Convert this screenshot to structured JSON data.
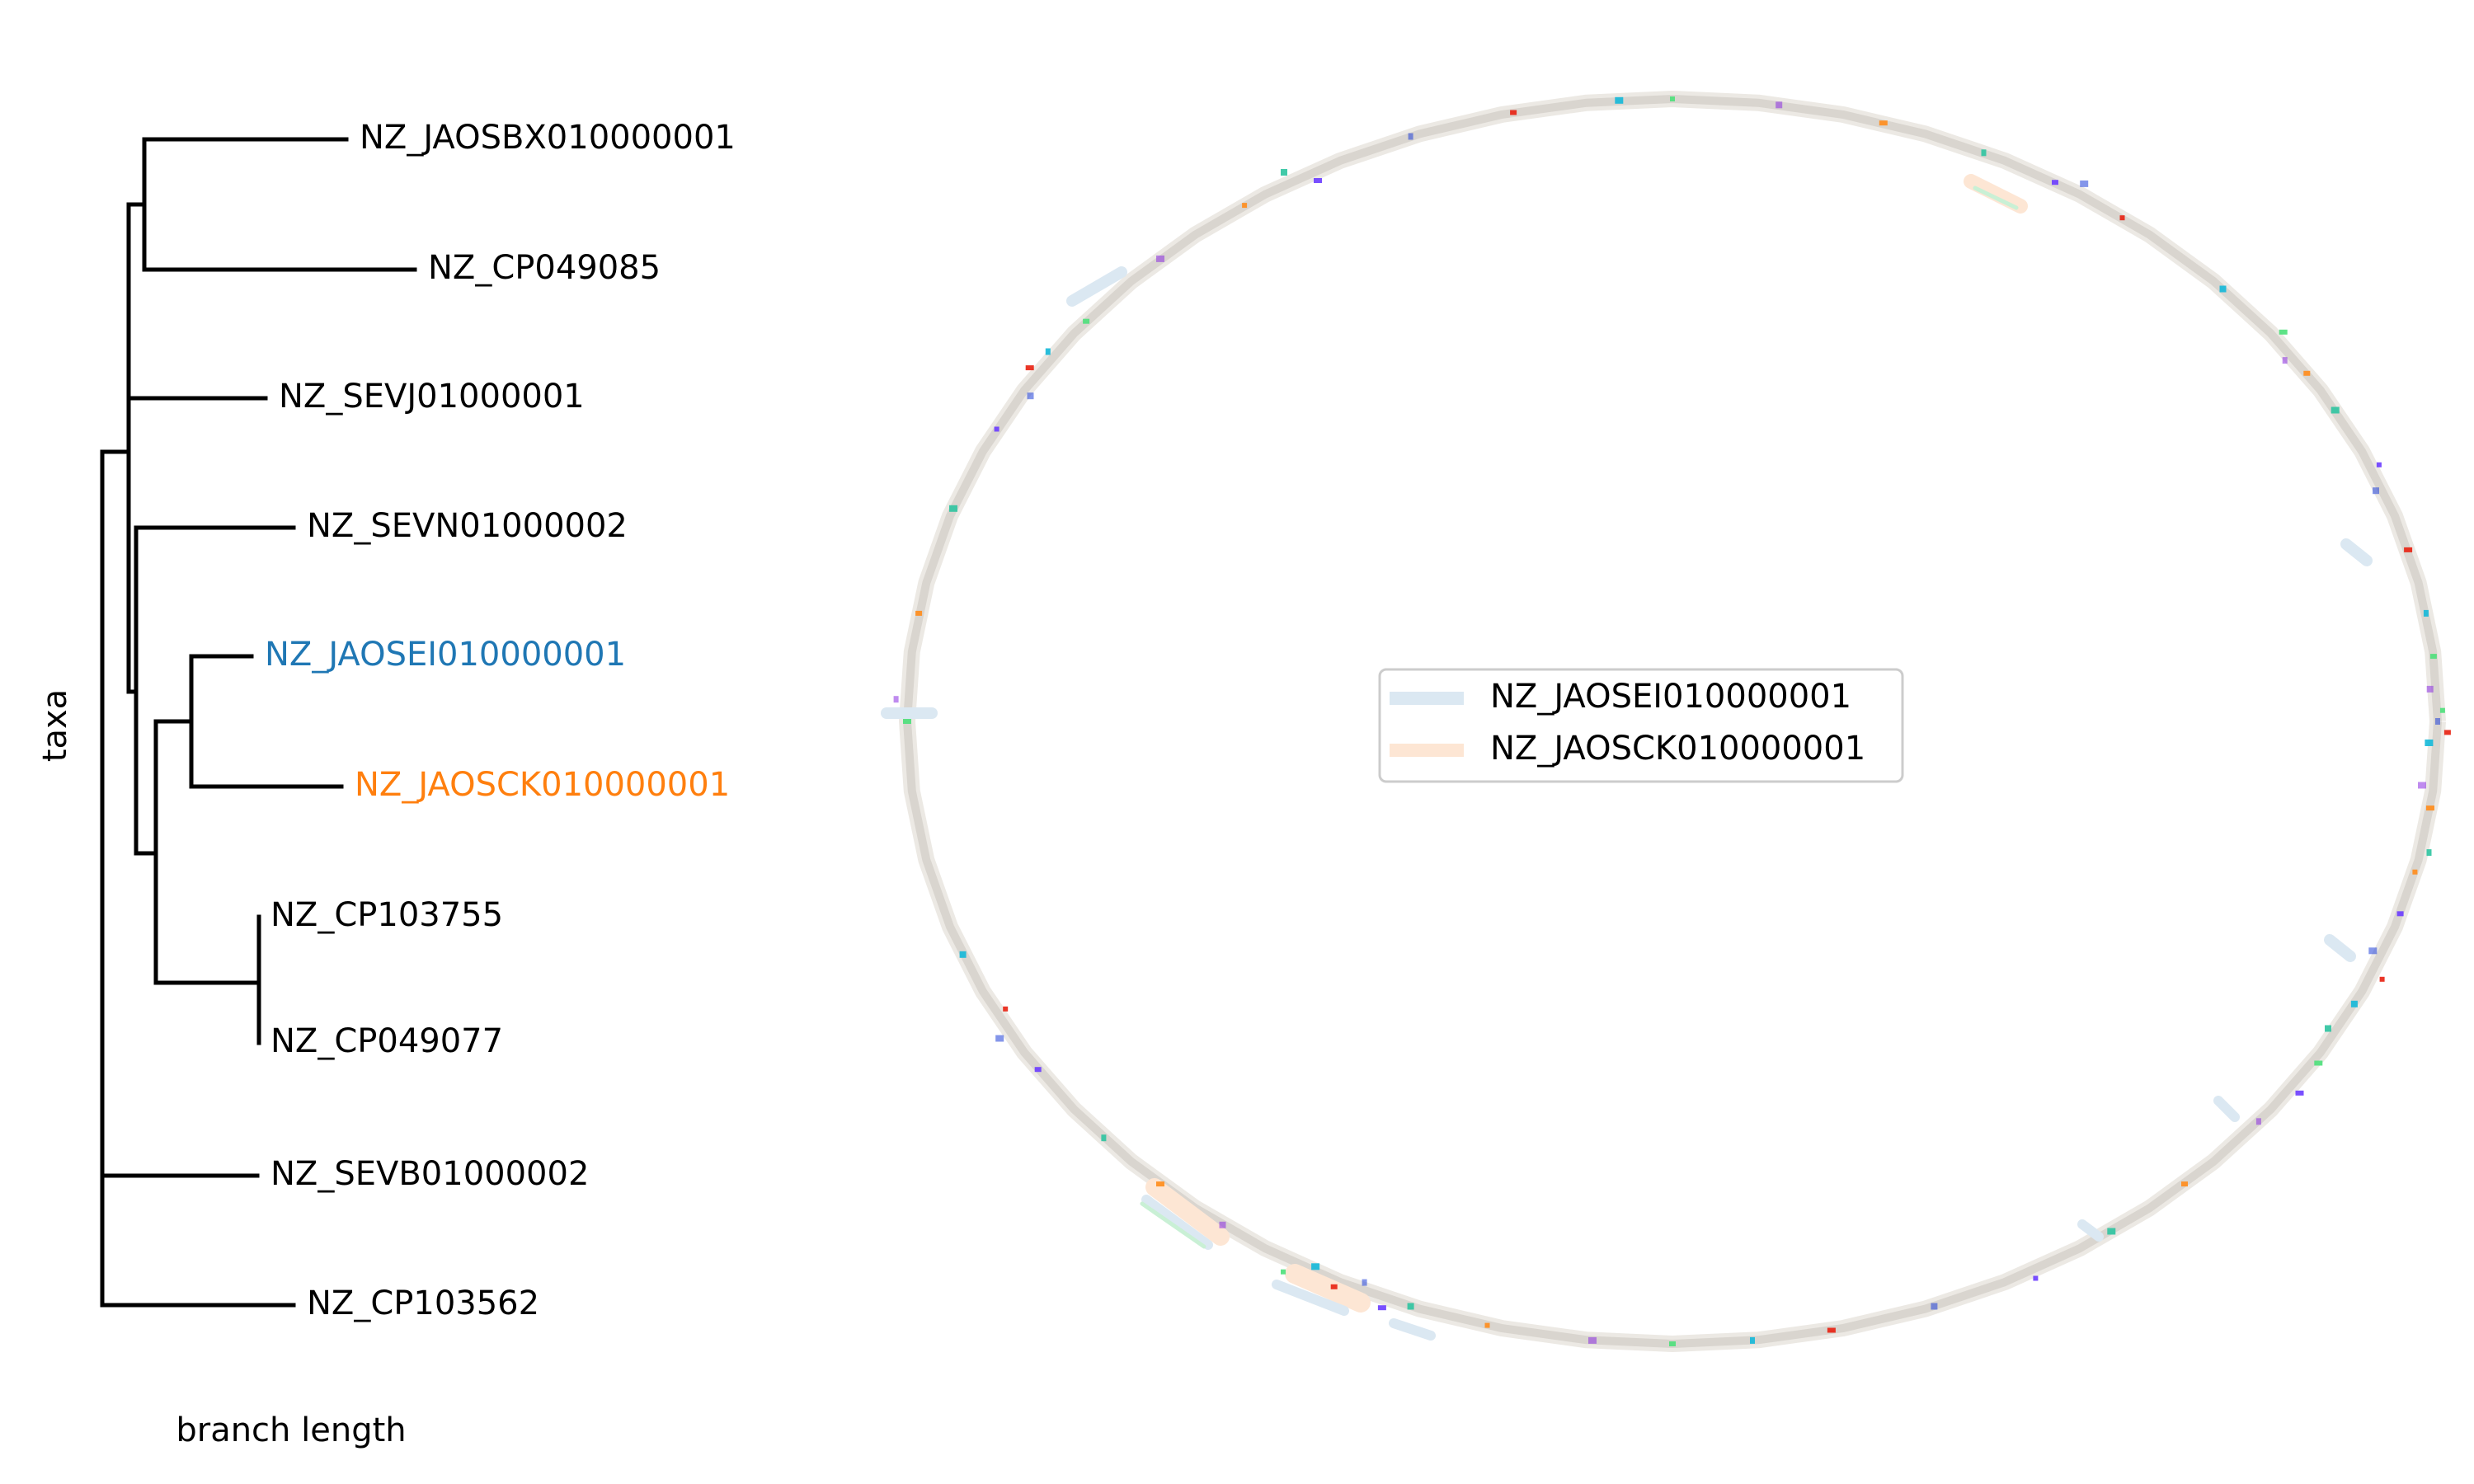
{
  "tree": {
    "ylabel": "taxa",
    "xlabel": "branch length",
    "line_color": "#000000",
    "leaves": [
      {
        "name": "NZ_JAOSBX010000001",
        "color": "#000000"
      },
      {
        "name": "NZ_CP049085",
        "color": "#000000"
      },
      {
        "name": "NZ_SEVJ01000001",
        "color": "#000000"
      },
      {
        "name": "NZ_SEVN01000002",
        "color": "#000000"
      },
      {
        "name": "NZ_JAOSEI010000001",
        "color": "#1f77b4"
      },
      {
        "name": "NZ_JAOSCK010000001",
        "color": "#ff7f0e"
      },
      {
        "name": "NZ_CP103755",
        "color": "#000000"
      },
      {
        "name": "NZ_CP049077",
        "color": "#000000"
      },
      {
        "name": "NZ_SEVB01000002",
        "color": "#000000"
      },
      {
        "name": "NZ_CP103562",
        "color": "#000000"
      }
    ]
  },
  "circular_map": {
    "ring_color": "#d9d5cf",
    "legend": [
      {
        "label": "NZ_JAOSEI010000001",
        "color": "#dbe8f2"
      },
      {
        "label": "NZ_JAOSCK010000001",
        "color": "#fde6d4"
      }
    ],
    "marker_colors": [
      "#1f3fd9",
      "#e8200f",
      "#13b8d8",
      "#4de07a",
      "#8a2be2",
      "#ff8c1a",
      "#2ec4a0",
      "#6a3cff"
    ]
  }
}
